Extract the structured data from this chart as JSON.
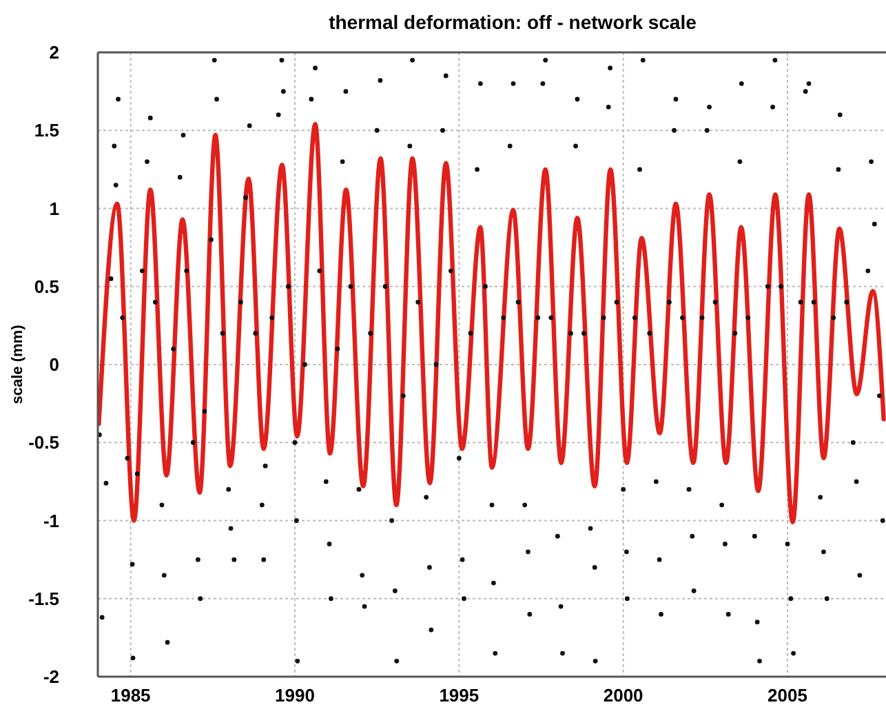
{
  "chart_data": {
    "type": "line",
    "title": "thermal deformation: off - network scale",
    "ylabel": "scale (mm)",
    "xlim": [
      1984,
      2008
    ],
    "ylim": [
      -2,
      2
    ],
    "xticks": [
      1985,
      1990,
      1995,
      2000,
      2005
    ],
    "yticks": [
      -2,
      -1.5,
      -1,
      -0.5,
      0,
      0.5,
      1,
      1.5,
      2
    ],
    "grid": true,
    "series": [
      {
        "type": "scatter",
        "color": "#111111",
        "marker": "circle",
        "x": [
          1984.05,
          1984.13,
          1984.25,
          1984.4,
          1984.5,
          1984.55,
          1984.62,
          1984.75,
          1984.9,
          1985.05,
          1985.07,
          1985.2,
          1985.35,
          1985.5,
          1985.6,
          1985.75,
          1985.95,
          1986.02,
          1986.12,
          1986.3,
          1986.5,
          1986.6,
          1986.7,
          1986.9,
          1987.05,
          1987.12,
          1987.25,
          1987.45,
          1987.55,
          1987.62,
          1987.8,
          1987.98,
          1988.05,
          1988.15,
          1988.35,
          1988.5,
          1988.62,
          1988.8,
          1989.0,
          1989.05,
          1989.1,
          1989.3,
          1989.5,
          1989.6,
          1989.65,
          1989.8,
          1990.0,
          1990.05,
          1990.08,
          1990.3,
          1990.5,
          1990.62,
          1990.75,
          1990.95,
          1991.05,
          1991.1,
          1991.3,
          1991.45,
          1991.55,
          1991.7,
          1991.95,
          1992.05,
          1992.12,
          1992.3,
          1992.5,
          1992.6,
          1992.75,
          1992.95,
          1993.05,
          1993.1,
          1993.3,
          1993.5,
          1993.58,
          1993.75,
          1994.0,
          1994.1,
          1994.15,
          1994.3,
          1994.5,
          1994.6,
          1994.75,
          1995.0,
          1995.1,
          1995.15,
          1995.35,
          1995.55,
          1995.65,
          1995.8,
          1996.0,
          1996.05,
          1996.1,
          1996.35,
          1996.55,
          1996.65,
          1996.8,
          1997.0,
          1997.1,
          1997.15,
          1997.4,
          1997.55,
          1997.63,
          1997.8,
          1998.0,
          1998.1,
          1998.15,
          1998.4,
          1998.55,
          1998.6,
          1998.8,
          1999.0,
          1999.13,
          1999.15,
          1999.4,
          1999.55,
          1999.6,
          1999.8,
          2000.0,
          2000.1,
          2000.12,
          2000.35,
          2000.5,
          2000.6,
          2000.8,
          2001.0,
          2001.1,
          2001.15,
          2001.4,
          2001.55,
          2001.6,
          2001.8,
          2002.0,
          2002.1,
          2002.15,
          2002.4,
          2002.55,
          2002.62,
          2002.8,
          2003.0,
          2003.1,
          2003.2,
          2003.4,
          2003.55,
          2003.6,
          2003.8,
          2004.0,
          2004.08,
          2004.15,
          2004.4,
          2004.55,
          2004.62,
          2004.8,
          2005.0,
          2005.1,
          2005.18,
          2005.4,
          2005.55,
          2005.65,
          2005.8,
          2006.0,
          2006.1,
          2006.2,
          2006.4,
          2006.55,
          2006.6,
          2006.8,
          2007.0,
          2007.1,
          2007.2,
          2007.45,
          2007.55,
          2007.65,
          2007.8,
          2007.9
        ],
        "values": [
          -0.45,
          -1.62,
          -0.76,
          0.55,
          1.4,
          1.15,
          1.7,
          0.3,
          -0.6,
          -1.28,
          -1.88,
          -0.7,
          0.6,
          1.3,
          1.58,
          0.4,
          -0.9,
          -1.35,
          -1.78,
          0.1,
          1.2,
          1.47,
          0.6,
          -0.5,
          -1.25,
          -1.5,
          -0.3,
          0.8,
          1.95,
          1.7,
          0.2,
          -0.8,
          -1.05,
          -1.25,
          0.4,
          1.07,
          1.53,
          0.2,
          -0.9,
          -1.25,
          -0.65,
          0.3,
          1.6,
          1.95,
          1.75,
          0.5,
          -0.5,
          -1.0,
          -1.9,
          0.0,
          1.7,
          1.9,
          0.6,
          -0.75,
          -1.15,
          -1.5,
          0.1,
          1.3,
          1.75,
          0.5,
          -0.8,
          -1.35,
          -1.55,
          0.2,
          1.5,
          1.82,
          0.5,
          -1.0,
          -1.45,
          -1.9,
          -0.2,
          1.4,
          1.95,
          0.4,
          -0.85,
          -1.3,
          -1.7,
          0.0,
          1.5,
          1.85,
          0.6,
          -0.6,
          -1.25,
          -1.5,
          0.2,
          1.25,
          1.8,
          0.5,
          -0.9,
          -1.4,
          -1.85,
          0.3,
          1.4,
          1.8,
          0.4,
          -0.9,
          -1.2,
          -1.6,
          0.3,
          1.8,
          1.95,
          0.3,
          -1.1,
          -1.55,
          -1.85,
          0.2,
          1.4,
          1.7,
          0.2,
          -1.05,
          -1.3,
          -1.9,
          0.3,
          1.65,
          1.9,
          0.4,
          -0.8,
          -1.2,
          -1.5,
          0.3,
          1.25,
          1.95,
          0.2,
          -0.75,
          -1.25,
          -1.6,
          0.4,
          1.5,
          1.7,
          0.3,
          -0.8,
          -1.1,
          -1.45,
          0.3,
          1.5,
          1.65,
          0.4,
          -0.9,
          -1.15,
          -1.6,
          0.2,
          1.3,
          1.8,
          0.3,
          -1.1,
          -1.65,
          -1.9,
          0.5,
          1.65,
          1.95,
          0.5,
          -1.15,
          -1.5,
          -1.85,
          0.4,
          1.75,
          1.8,
          0.4,
          -0.85,
          -1.2,
          -1.5,
          0.3,
          1.25,
          1.6,
          0.4,
          -0.5,
          -0.75,
          -1.35,
          0.6,
          1.3,
          0.9,
          -0.2,
          -1.0
        ]
      },
      {
        "color": "#e0201b",
        "line_style": "solid",
        "x": [
          1984.03,
          1984.59,
          1985.1,
          1985.6,
          1986.09,
          1986.58,
          1987.1,
          1987.58,
          1988.03,
          1988.59,
          1989.05,
          1989.61,
          1990.07,
          1990.62,
          1991.07,
          1991.56,
          1992.08,
          1992.61,
          1993.09,
          1993.58,
          1994.11,
          1994.6,
          1995.09,
          1995.65,
          1996.0,
          1996.65,
          1997.1,
          1997.63,
          1998.11,
          1998.6,
          1999.13,
          1999.61,
          2000.11,
          2000.56,
          2001.11,
          2001.6,
          2002.13,
          2002.62,
          2003.13,
          2003.59,
          2004.11,
          2004.63,
          2005.16,
          2005.65,
          2006.1,
          2006.58,
          2007.11,
          2007.6,
          2007.93
        ],
        "values": [
          -0.38,
          1.03,
          -1.0,
          1.12,
          -0.71,
          0.93,
          -0.82,
          1.47,
          -0.65,
          1.19,
          -0.54,
          1.28,
          -0.46,
          1.54,
          -0.57,
          1.12,
          -0.78,
          1.32,
          -0.9,
          1.32,
          -0.76,
          1.29,
          -0.54,
          0.88,
          -0.66,
          0.99,
          -0.54,
          1.25,
          -0.63,
          0.94,
          -0.78,
          1.25,
          -0.63,
          0.81,
          -0.44,
          1.03,
          -0.63,
          1.09,
          -0.63,
          0.88,
          -0.81,
          1.09,
          -1.01,
          1.09,
          -0.6,
          0.87,
          -0.19,
          0.47,
          -0.35
        ]
      }
    ]
  }
}
